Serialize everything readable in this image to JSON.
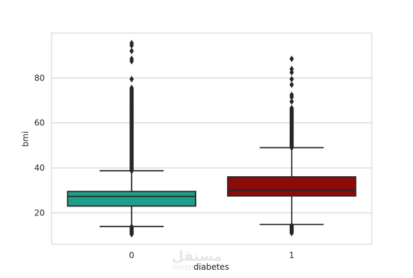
{
  "chart_data": {
    "type": "box",
    "title": "",
    "xlabel": "diabetes",
    "ylabel": "bmi",
    "ylim": [
      6,
      100
    ],
    "yticks": [
      20,
      40,
      60,
      80
    ],
    "grid": true,
    "categories": [
      "0",
      "1"
    ],
    "series": [
      {
        "category": "0",
        "color": "#1f9e89",
        "whisker_low": 13.9,
        "q1": 23.0,
        "median": 27.3,
        "q3": 29.5,
        "whisker_high": 38.7,
        "outliers_high_range": [
          38.7,
          76.0
        ],
        "outliers_high_extra": [
          79.5,
          87.5,
          88.5,
          92.0,
          94.5,
          95.5
        ],
        "outliers_low_range": [
          10.5,
          13.9
        ]
      },
      {
        "category": "1",
        "color": "#8b0a0a",
        "whisker_low": 14.8,
        "q1": 27.5,
        "median": 30.0,
        "q3": 36.0,
        "whisker_high": 49.0,
        "outliers_high_range": [
          49.0,
          67.0
        ],
        "outliers_high_extra": [
          69.5,
          71.5,
          72.5,
          77.0,
          79.5,
          82.5,
          84.0,
          88.5
        ],
        "outliers_low_range": [
          11.0,
          14.8
        ]
      }
    ]
  },
  "watermark": {
    "text": "مستقل",
    "sub": "mostaql.com"
  }
}
